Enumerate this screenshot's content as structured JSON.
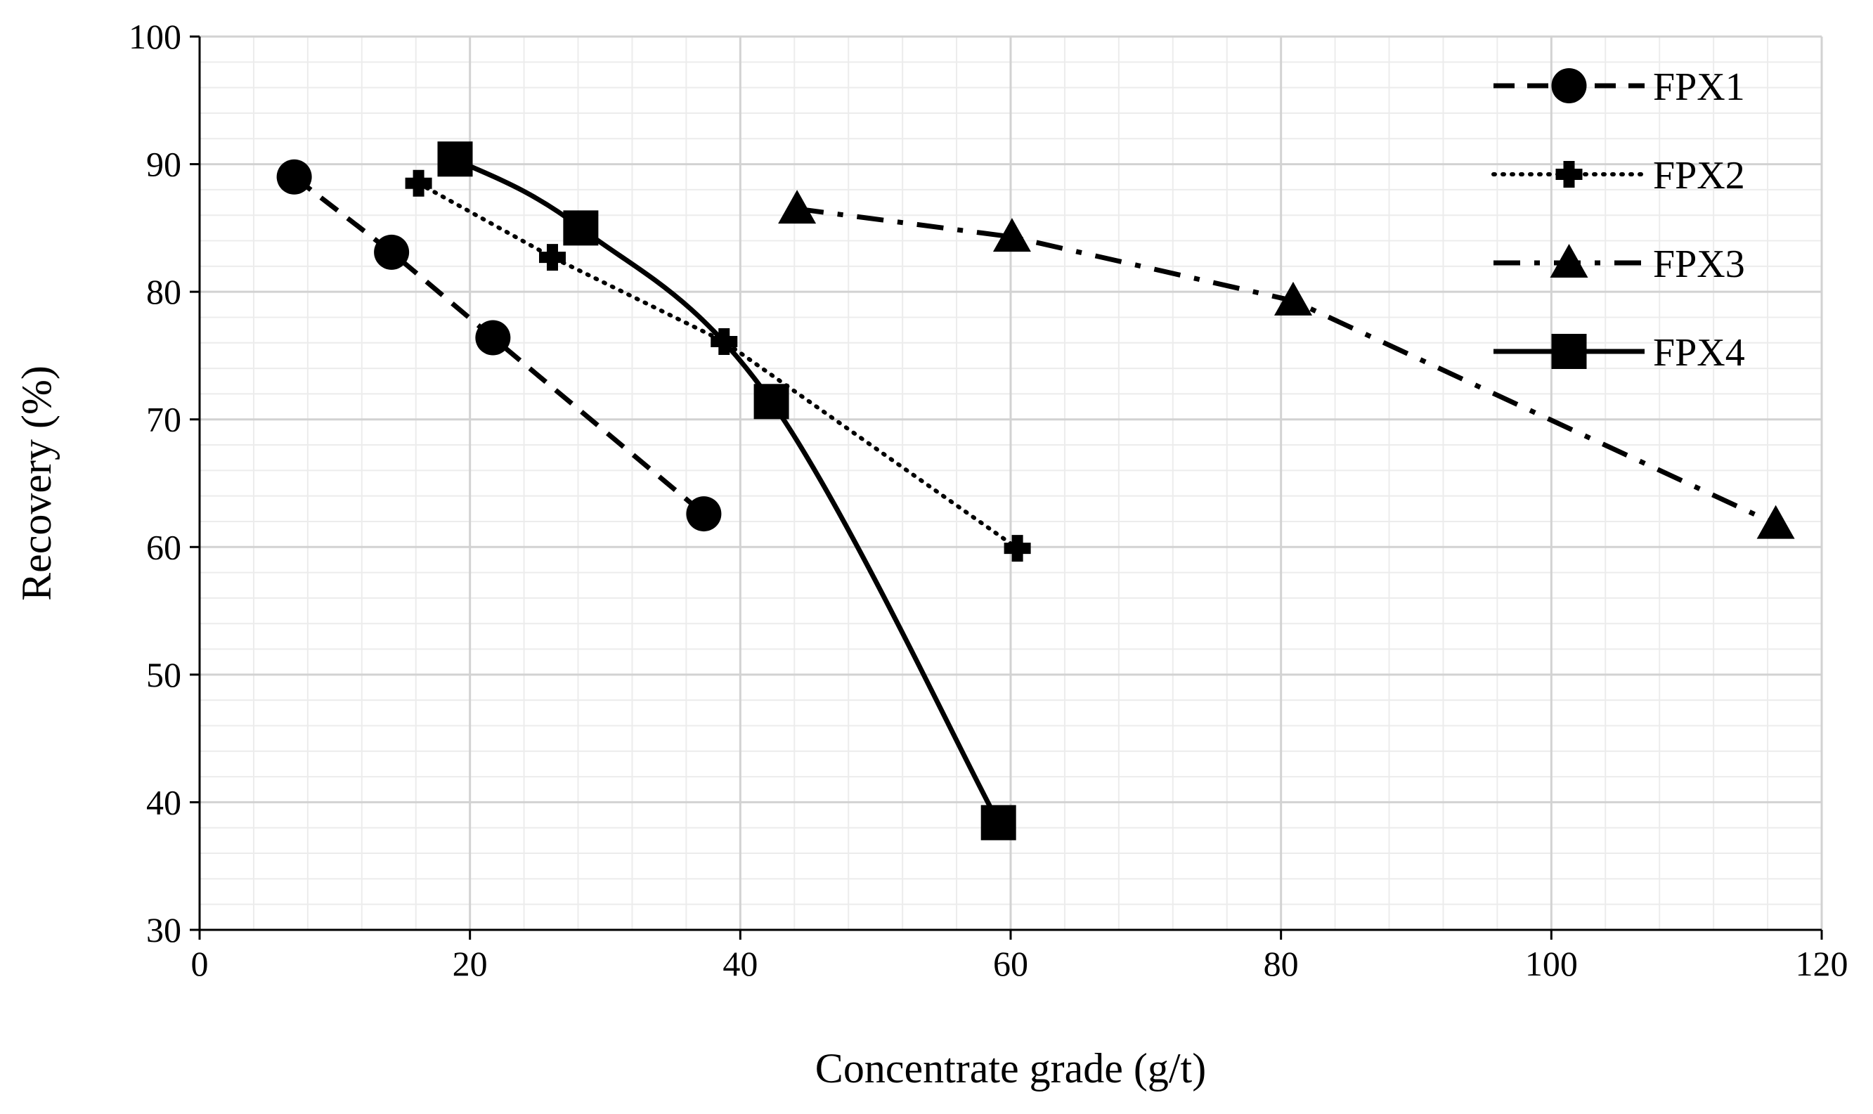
{
  "chart_data": {
    "type": "line",
    "title": "",
    "xlabel": "Concentrate grade (g/t)",
    "ylabel": "Recovery (%)",
    "xlim": [
      0,
      120
    ],
    "ylim": [
      30,
      100
    ],
    "xticks": [
      0,
      20,
      40,
      60,
      80,
      100,
      120
    ],
    "yticks": [
      30,
      40,
      50,
      60,
      70,
      80,
      90,
      100
    ],
    "x_minor_step": 4,
    "y_minor_step": 2,
    "grid": true,
    "legend_position": "top-right",
    "series": [
      {
        "name": "FPX1",
        "marker": "circle",
        "line_style": "dashed",
        "points": [
          {
            "x": 7,
            "y": 89.0
          },
          {
            "x": 14.2,
            "y": 83.1
          },
          {
            "x": 21.7,
            "y": 76.4
          },
          {
            "x": 37.3,
            "y": 62.6
          }
        ]
      },
      {
        "name": "FPX2",
        "marker": "cross",
        "line_style": "dotted",
        "points": [
          {
            "x": 16.2,
            "y": 88.5
          },
          {
            "x": 26.1,
            "y": 82.7
          },
          {
            "x": 38.8,
            "y": 76.1
          },
          {
            "x": 60.5,
            "y": 59.9
          }
        ]
      },
      {
        "name": "FPX3",
        "marker": "triangle",
        "line_style": "dash-dot",
        "points": [
          {
            "x": 44.2,
            "y": 86.5
          },
          {
            "x": 60.1,
            "y": 84.3
          },
          {
            "x": 80.9,
            "y": 79.3
          },
          {
            "x": 116.6,
            "y": 61.8
          }
        ]
      },
      {
        "name": "FPX4",
        "marker": "square",
        "line_style": "solid",
        "points": [
          {
            "x": 18.9,
            "y": 90.4
          },
          {
            "x": 28.2,
            "y": 85.0
          },
          {
            "x": 42.3,
            "y": 71.4
          },
          {
            "x": 59.1,
            "y": 38.4
          }
        ]
      }
    ]
  }
}
